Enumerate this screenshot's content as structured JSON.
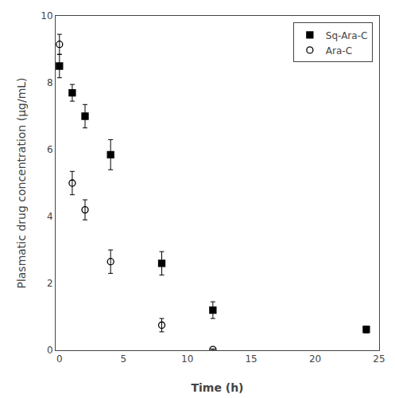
{
  "chart_data": {
    "type": "scatter",
    "xlabel": "Time (h)",
    "ylabel": "Plasmatic drug concentration (µg/mL)",
    "xlim": [
      -0.3,
      25
    ],
    "ylim": [
      0,
      10
    ],
    "xticks": [
      0,
      5,
      10,
      15,
      20,
      25
    ],
    "yticks": [
      0,
      2,
      4,
      6,
      8,
      10
    ],
    "grid": false,
    "legend": "upper right",
    "series": [
      {
        "name": "Sq-Ara-C",
        "color": "black",
        "marker": "square",
        "x": [
          0,
          1,
          2,
          4,
          8,
          12,
          24
        ],
        "values": [
          8.5,
          7.7,
          7.0,
          5.85,
          2.6,
          1.2,
          0.62
        ],
        "yerr": [
          0.35,
          0.25,
          0.35,
          0.45,
          0.35,
          0.25,
          0.1
        ]
      },
      {
        "name": "Ara-C",
        "color": "black",
        "marker": "circle-open",
        "x": [
          0,
          1,
          2,
          4,
          8,
          12
        ],
        "values": [
          9.15,
          5.0,
          4.2,
          2.65,
          0.75,
          0.02
        ],
        "yerr": [
          0.3,
          0.35,
          0.3,
          0.35,
          0.2,
          0.02
        ]
      }
    ]
  }
}
